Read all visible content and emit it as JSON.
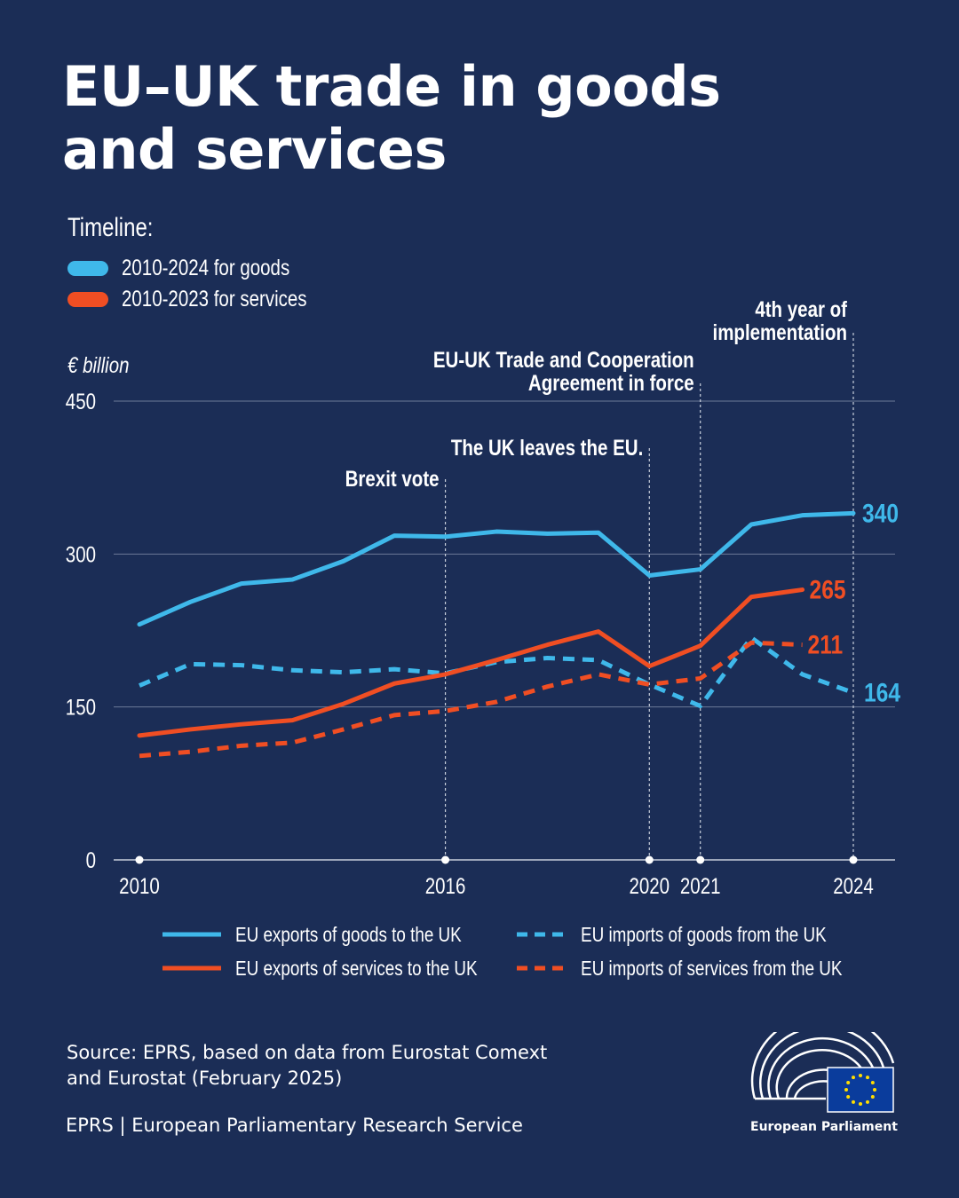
{
  "title_line1": "EU–UK trade in goods",
  "title_line2": "and services",
  "timeline": {
    "heading": "Timeline:",
    "items": [
      {
        "label": "2010-2024 for goods",
        "color": "#3fb8ea"
      },
      {
        "label": "2010-2023 for services",
        "color": "#f04e23"
      }
    ]
  },
  "chart_data": {
    "type": "line",
    "ylabel": "€ billion",
    "ylim": [
      0,
      450
    ],
    "yticks": [
      "0",
      "150",
      "300",
      "450"
    ],
    "xticks": [
      "2010",
      "2016",
      "2020",
      "2021",
      "2024"
    ],
    "xlim": [
      2010,
      2024
    ],
    "grid": true,
    "series": [
      {
        "name": "EU exports of goods to the UK",
        "color": "#3fb8ea",
        "dash": false,
        "x": [
          2010,
          2011,
          2012,
          2013,
          2014,
          2015,
          2016,
          2017,
          2018,
          2019,
          2020,
          2021,
          2022,
          2023,
          2024
        ],
        "values": [
          231,
          253,
          271,
          275,
          293,
          318,
          317,
          322,
          320,
          321,
          279,
          285,
          329,
          338,
          340
        ],
        "end_label": "340"
      },
      {
        "name": "EU imports of goods from the UK",
        "color": "#3fb8ea",
        "dash": true,
        "x": [
          2010,
          2011,
          2012,
          2013,
          2014,
          2015,
          2016,
          2017,
          2018,
          2019,
          2020,
          2021,
          2022,
          2023,
          2024
        ],
        "values": [
          171,
          192,
          191,
          186,
          184,
          187,
          183,
          194,
          198,
          196,
          172,
          151,
          218,
          182,
          164
        ],
        "end_label": "164"
      },
      {
        "name": "EU exports of services to the UK",
        "color": "#f04e23",
        "dash": false,
        "x": [
          2010,
          2011,
          2012,
          2013,
          2014,
          2015,
          2016,
          2017,
          2018,
          2019,
          2020,
          2021,
          2022,
          2023
        ],
        "values": [
          122,
          128,
          133,
          137,
          153,
          173,
          182,
          196,
          211,
          224,
          190,
          210,
          258,
          265
        ],
        "end_label": "265"
      },
      {
        "name": "EU imports of services from the UK",
        "color": "#f04e23",
        "dash": true,
        "x": [
          2010,
          2011,
          2012,
          2013,
          2014,
          2015,
          2016,
          2017,
          2018,
          2019,
          2020,
          2021,
          2022,
          2023
        ],
        "values": [
          102,
          106,
          112,
          115,
          128,
          142,
          146,
          155,
          170,
          182,
          172,
          178,
          213,
          211
        ],
        "end_label": "211"
      }
    ],
    "annotations": [
      {
        "x": 2016,
        "lines": [
          "Brexit vote"
        ]
      },
      {
        "x": 2020,
        "lines": [
          "The UK leaves the EU."
        ]
      },
      {
        "x": 2021,
        "lines": [
          "EU-UK Trade and Cooperation",
          "Agreement in force"
        ]
      },
      {
        "x": 2024,
        "lines": [
          "4th year of",
          "implementation"
        ]
      }
    ],
    "legend_placement": "bottom"
  },
  "source": {
    "line1": "Source: EPRS, based on data from Eurostat Comext",
    "line2": "and Eurostat (February 2025)"
  },
  "footer": "EPRS | European Parliamentary Research Service",
  "logo_text": "European Parliament"
}
